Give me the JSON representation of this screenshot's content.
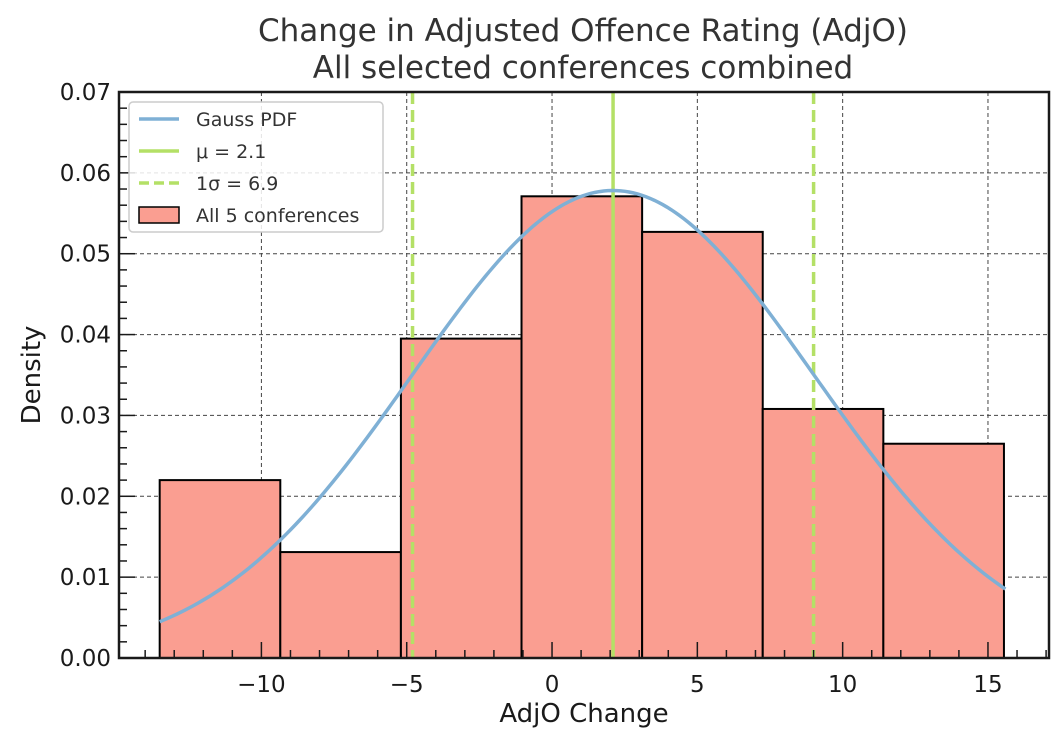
{
  "chart_data": {
    "type": "bar",
    "title": "Change in Adjusted Offence Rating (AdjO)",
    "subtitle": "All selected conferences combined",
    "xlabel": "AdjO Change",
    "ylabel": "Density",
    "xlim": [
      -14.9,
      17.1
    ],
    "ylim": [
      0,
      0.07
    ],
    "grid": true,
    "legend_position": "top-left",
    "x_ticks": [
      -10,
      -5,
      0,
      5,
      10,
      15
    ],
    "x_tick_labels": [
      "−10",
      "−5",
      "0",
      "5",
      "10",
      "15"
    ],
    "y_ticks": [
      0,
      0.01,
      0.02,
      0.03,
      0.04,
      0.05,
      0.06,
      0.07
    ],
    "y_tick_labels": [
      "0.00",
      "0.01",
      "0.02",
      "0.03",
      "0.04",
      "0.05",
      "0.06",
      "0.07"
    ],
    "histogram": {
      "name": "All 5 conferences",
      "color": "#fa9e91",
      "edge_color": "#000000",
      "bin_edges": [
        -13.5,
        -9.35,
        -5.2,
        -1.05,
        3.1,
        7.25,
        11.4,
        15.55
      ],
      "values": [
        0.022,
        0.0131,
        0.0395,
        0.0571,
        0.0527,
        0.0308,
        0.0265
      ]
    },
    "gauss": {
      "name": "Gauss PDF",
      "color": "#7fb0d5",
      "mu": 2.1,
      "sigma": 6.9,
      "x_range": [
        -13.5,
        15.6
      ]
    },
    "mean_line": {
      "name": "μ = 2.1",
      "x": 2.1,
      "color": "#b4e066"
    },
    "sigma_lines": {
      "name": "1σ = 6.9",
      "x": [
        -4.8,
        9.0
      ],
      "color": "#b4e066"
    },
    "legend": [
      {
        "label": "Gauss PDF",
        "kind": "line",
        "color": "#7fb0d5"
      },
      {
        "label": "μ = 2.1",
        "kind": "line",
        "color": "#b4e066"
      },
      {
        "label": "1σ = 6.9",
        "kind": "dashed",
        "color": "#b4e066"
      },
      {
        "label": "All 5 conferences",
        "kind": "patch",
        "color": "#fa9e91"
      }
    ]
  }
}
